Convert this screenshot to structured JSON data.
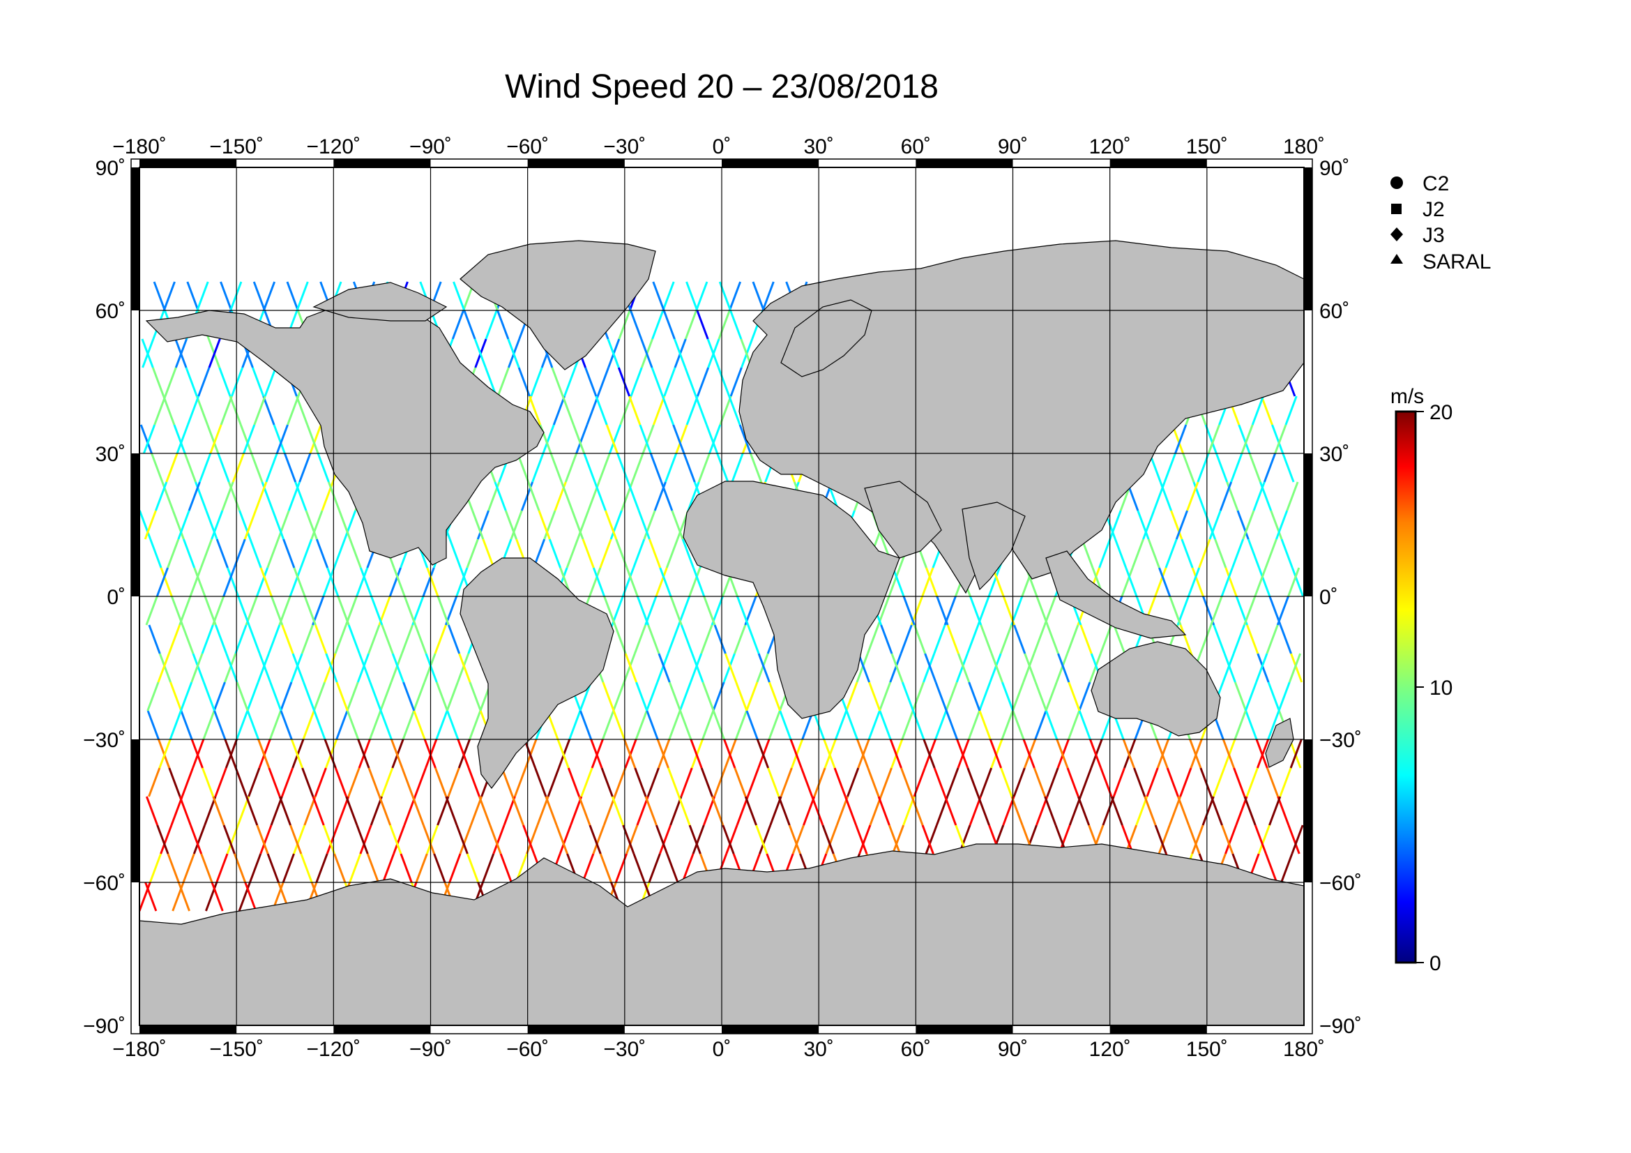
{
  "title": "Wind Speed 20 – 23/08/2018",
  "map": {
    "projection": "equirectangular",
    "lon_range": [
      -180,
      180
    ],
    "lat_range": [
      -90,
      90
    ],
    "lon_ticks": [
      -180,
      -150,
      -120,
      -90,
      -60,
      -30,
      0,
      30,
      60,
      90,
      120,
      150,
      180
    ],
    "lat_ticks": [
      90,
      60,
      30,
      0,
      -30,
      -60,
      -90
    ],
    "lon_tick_labels": [
      "−180˚",
      "−150˚",
      "−120˚",
      "−90˚",
      "−60˚",
      "−30˚",
      "0˚",
      "30˚",
      "60˚",
      "90˚",
      "120˚",
      "150˚",
      "180˚"
    ],
    "lat_tick_labels": [
      "90˚",
      "60˚",
      "30˚",
      "0˚",
      "−30˚",
      "−60˚",
      "−90˚"
    ],
    "land_color": "#bebebe",
    "ocean_color": "#ffffff",
    "grid": true
  },
  "legend": {
    "items": [
      {
        "symbol": "circle",
        "label": "C2"
      },
      {
        "symbol": "square",
        "label": "J2"
      },
      {
        "symbol": "diamond",
        "label": "J3"
      },
      {
        "symbol": "triangle",
        "label": "SARAL"
      }
    ]
  },
  "colorbar": {
    "unit": "m/s",
    "min": 0,
    "max": 20,
    "tick_values": [
      20,
      10,
      0
    ],
    "tick_labels": [
      "20",
      "10",
      "0"
    ],
    "colors": [
      "#00007f",
      "#0000ff",
      "#007fff",
      "#00ffff",
      "#7fff7f",
      "#ffff00",
      "#ff7f00",
      "#ff0000",
      "#7f0000"
    ]
  },
  "chart_data": {
    "type": "scatter",
    "description_of_marks": "satellite altimeter ground tracks coloured by wind speed",
    "series": [
      {
        "name": "C2"
      },
      {
        "name": "J2"
      },
      {
        "name": "J3"
      },
      {
        "name": "SARAL"
      }
    ],
    "value_range": [
      0,
      20
    ],
    "lon_range": [
      -180,
      180
    ],
    "lat_range": [
      -90,
      90
    ]
  }
}
